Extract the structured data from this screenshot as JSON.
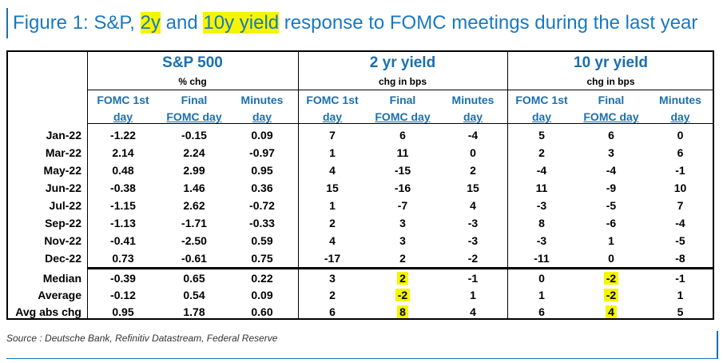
{
  "title": {
    "prefix": "Figure 1: S&P, ",
    "hl1": "2y",
    "mid": " and ",
    "hl2": "10y yield",
    "suffix": " response to FOMC meetings during the last year"
  },
  "groups": [
    {
      "name": "S&P 500",
      "sub": "% chg"
    },
    {
      "name": "2 yr yield",
      "sub": "chg in bps"
    },
    {
      "name": "10 yr yield",
      "sub": "chg in bps"
    }
  ],
  "col_headers": [
    {
      "l1": "FOMC 1st",
      "l2": "day"
    },
    {
      "l1": "Final",
      "l2": "FOMC day"
    },
    {
      "l1": "Minutes",
      "l2": "day"
    },
    {
      "l1": "FOMC 1st",
      "l2": "day"
    },
    {
      "l1": "Final",
      "l2": "FOMC day"
    },
    {
      "l1": "Minutes",
      "l2": "day"
    },
    {
      "l1": "FOMC 1st",
      "l2": "day"
    },
    {
      "l1": "Final",
      "l2": "FOMC day"
    },
    {
      "l1": "Minutes",
      "l2": "day"
    }
  ],
  "rows": [
    {
      "label": "Jan-22",
      "values": [
        "-1.22",
        "-0.15",
        "0.09",
        "7",
        "6",
        "-4",
        "5",
        "6",
        "0"
      ]
    },
    {
      "label": "Mar-22",
      "values": [
        "2.14",
        "2.24",
        "-0.97",
        "1",
        "11",
        "0",
        "2",
        "3",
        "6"
      ]
    },
    {
      "label": "May-22",
      "values": [
        "0.48",
        "2.99",
        "0.95",
        "4",
        "-15",
        "2",
        "-4",
        "-4",
        "-1"
      ]
    },
    {
      "label": "Jun-22",
      "values": [
        "-0.38",
        "1.46",
        "0.36",
        "15",
        "-16",
        "15",
        "11",
        "-9",
        "10"
      ]
    },
    {
      "label": "Jul-22",
      "values": [
        "-1.15",
        "2.62",
        "-0.72",
        "1",
        "-7",
        "4",
        "-3",
        "-5",
        "7"
      ]
    },
    {
      "label": "Sep-22",
      "values": [
        "-1.13",
        "-1.71",
        "-0.33",
        "2",
        "3",
        "-3",
        "8",
        "-6",
        "-4"
      ]
    },
    {
      "label": "Nov-22",
      "values": [
        "-0.41",
        "-2.50",
        "0.59",
        "4",
        "3",
        "-3",
        "-3",
        "1",
        "-5"
      ]
    },
    {
      "label": "Dec-22",
      "values": [
        "0.73",
        "-0.61",
        "0.75",
        "-17",
        "2",
        "-2",
        "-11",
        "0",
        "-8"
      ]
    }
  ],
  "summary": [
    {
      "label": "Median",
      "values": [
        "-0.39",
        "0.65",
        "0.22",
        "3",
        "2",
        "-1",
        "0",
        "-2",
        "-1"
      ]
    },
    {
      "label": "Average",
      "values": [
        "-0.12",
        "0.54",
        "0.09",
        "2",
        "-2",
        "1",
        "1",
        "-2",
        "1"
      ]
    },
    {
      "label": "Avg abs chg",
      "values": [
        "0.95",
        "1.78",
        "0.60",
        "6",
        "8",
        "4",
        "6",
        "4",
        "5"
      ]
    }
  ],
  "highlight_color": "#f5f500",
  "accent_color": "#1a6fb0",
  "source": "Source : Deutsche Bank, Refinitiv Datastream, Federal Reserve"
}
